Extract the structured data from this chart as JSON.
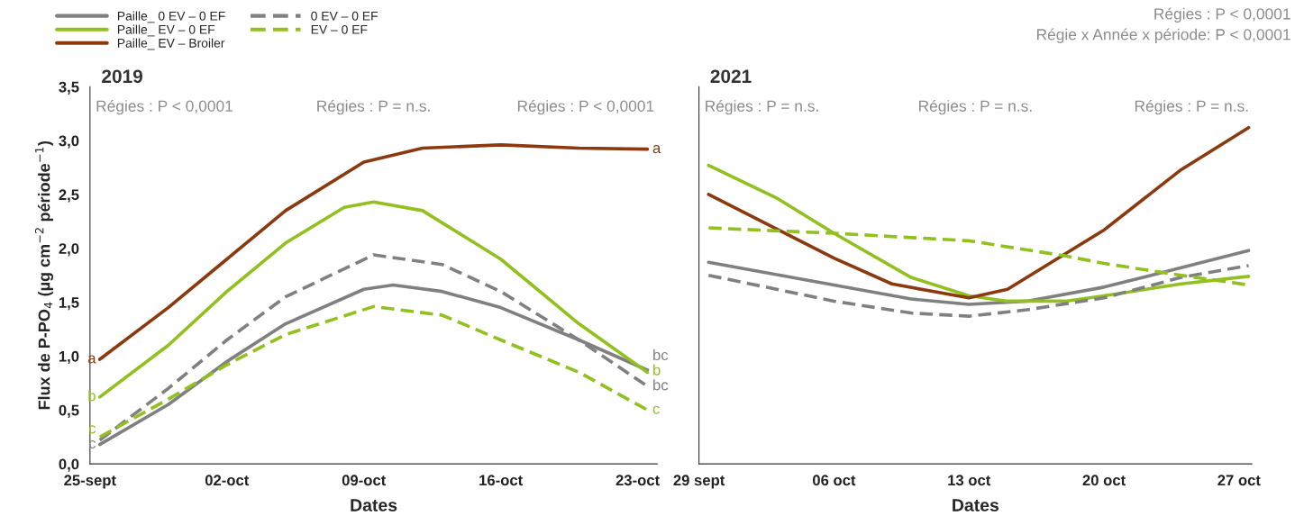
{
  "chart_data": [
    {
      "type": "line",
      "title": "2019",
      "xlabel": "Dates",
      "ylabel": "Flux de P-PO$_{4}$ (µg cm$^{−2}$ période$^{−1}$)",
      "xlim": [
        "2019-09-25",
        "2019-10-24"
      ],
      "xticks": [
        {
          "value": "2019-09-25",
          "label": "25-sept"
        },
        {
          "value": "2019-10-02",
          "label": "02-oct"
        },
        {
          "value": "2019-10-09",
          "label": "09-oct"
        },
        {
          "value": "2019-10-16",
          "label": "16-oct"
        },
        {
          "value": "2019-10-23",
          "label": "23-oct"
        }
      ],
      "ylim": [
        0,
        3.5
      ],
      "yticks": [
        {
          "value": 0,
          "label": "0,0"
        },
        {
          "value": 0.5,
          "label": "0,5"
        },
        {
          "value": 1,
          "label": "1,0"
        },
        {
          "value": 1.5,
          "label": "1,5"
        },
        {
          "value": 2,
          "label": "2,0"
        },
        {
          "value": 2.5,
          "label": "2,5"
        },
        {
          "value": 3,
          "label": "3,0"
        },
        {
          "value": 3.5,
          "label": "3,5"
        }
      ],
      "grid": false,
      "legend": "top left",
      "series": [
        {
          "name": "Paille_ 0 EV – 0 EF",
          "color": "#808080",
          "line_style": "solid",
          "x": [
            "2019-09-25T12:00",
            "2019-09-29",
            "2019-10-02",
            "2019-10-05",
            "2019-10-09",
            "2019-10-10T12:00",
            "2019-10-13",
            "2019-10-16",
            "2019-10-20",
            "2019-10-23T12:00"
          ],
          "values": [
            0.18,
            0.55,
            0.95,
            1.3,
            1.62,
            1.66,
            1.6,
            1.45,
            1.15,
            0.87
          ]
        },
        {
          "name": "Paille_ EV – 0 EF",
          "color": "#92c01f",
          "line_style": "solid",
          "x": [
            "2019-09-25T12:00",
            "2019-09-29",
            "2019-10-02",
            "2019-10-05",
            "2019-10-08",
            "2019-10-09T12:00",
            "2019-10-12",
            "2019-10-16",
            "2019-10-20",
            "2019-10-23T12:00"
          ],
          "values": [
            0.62,
            1.1,
            1.6,
            2.05,
            2.38,
            2.43,
            2.35,
            1.9,
            1.3,
            0.85
          ]
        },
        {
          "name": "Paille_ EV – Broiler",
          "color": "#8b3a0f",
          "line_style": "solid",
          "x": [
            "2019-09-25T12:00",
            "2019-09-29",
            "2019-10-02",
            "2019-10-05",
            "2019-10-09",
            "2019-10-12",
            "2019-10-16",
            "2019-10-20",
            "2019-10-23T12:00"
          ],
          "values": [
            0.97,
            1.45,
            1.9,
            2.35,
            2.8,
            2.93,
            2.96,
            2.93,
            2.92
          ]
        },
        {
          "name": "0 EV – 0 EF",
          "color": "#808080",
          "line_style": "dashed",
          "x": [
            "2019-09-25T12:00",
            "2019-09-29",
            "2019-10-02",
            "2019-10-05",
            "2019-10-09T12:00",
            "2019-10-13",
            "2019-10-16",
            "2019-10-20",
            "2019-10-23T12:00"
          ],
          "values": [
            0.22,
            0.7,
            1.15,
            1.55,
            1.94,
            1.85,
            1.6,
            1.15,
            0.72
          ]
        },
        {
          "name": "EV – 0 EF",
          "color": "#92c01f",
          "line_style": "dashed",
          "x": [
            "2019-09-25T12:00",
            "2019-09-29",
            "2019-10-02",
            "2019-10-05",
            "2019-10-09T12:00",
            "2019-10-13",
            "2019-10-16",
            "2019-10-20",
            "2019-10-23T12:00"
          ],
          "values": [
            0.25,
            0.6,
            0.92,
            1.2,
            1.46,
            1.38,
            1.15,
            0.85,
            0.5
          ]
        }
      ],
      "annotations": [
        "Régies : P < 0,0001",
        "Régies : P = n.s.",
        "Régies : P < 0,0001",
        {
          "text": "a",
          "x": "2019-09-25T12:00",
          "y": 0.97
        },
        {
          "text": "b",
          "x": "2019-09-25T12:00",
          "y": 0.62
        },
        {
          "text": "c",
          "x": "2019-09-25T12:00",
          "y": 0.18
        },
        {
          "text": "c",
          "x": "2019-09-25T12:00",
          "y": 0.25
        },
        {
          "text": "a",
          "x": "2019-10-23T12:00",
          "y": 2.92
        },
        {
          "text": "b",
          "x": "2019-10-23T12:00",
          "y": 0.85
        },
        {
          "text": "bc",
          "x": "2019-10-23T12:00",
          "y": 0.87
        },
        {
          "text": "bc",
          "x": "2019-10-23T12:00",
          "y": 0.72
        },
        {
          "text": "c",
          "x": "2019-10-23T12:00",
          "y": 0.5
        }
      ]
    },
    {
      "type": "line",
      "title": "2021",
      "xlabel": "Dates",
      "xlim": [
        "2021-09-29",
        "2021-10-27T16:00"
      ],
      "xticks": [
        {
          "value": "2021-09-29",
          "label": "29 sept"
        },
        {
          "value": "2021-10-06",
          "label": "06 oct"
        },
        {
          "value": "2021-10-13",
          "label": "13 oct"
        },
        {
          "value": "2021-10-20",
          "label": "20 oct"
        },
        {
          "value": "2021-10-27",
          "label": "27 oct"
        }
      ],
      "ylim": [
        0,
        3.5
      ],
      "yticks": [
        {
          "value": 0,
          "label": null
        },
        {
          "value": 0.5,
          "label": null
        },
        {
          "value": 1,
          "label": null
        },
        {
          "value": 1.5,
          "label": null
        },
        {
          "value": 2,
          "label": null
        },
        {
          "value": 2.5,
          "label": null
        },
        {
          "value": 3,
          "label": null
        },
        {
          "value": 3.5,
          "label": null
        }
      ],
      "tick_labels": "x",
      "grid": false,
      "series": [
        {
          "color": "#808080",
          "line_style": "solid",
          "x": [
            "2021-09-29T12:00",
            "2021-10-06",
            "2021-10-10",
            "2021-10-13",
            "2021-10-16",
            "2021-10-20",
            "2021-10-24",
            "2021-10-27T12:00"
          ],
          "values": [
            1.87,
            1.66,
            1.53,
            1.48,
            1.51,
            1.64,
            1.82,
            1.98
          ]
        },
        {
          "color": "#92c01f",
          "line_style": "solid",
          "x": [
            "2021-09-29T12:00",
            "2021-10-03",
            "2021-10-06",
            "2021-10-10",
            "2021-10-13",
            "2021-10-15",
            "2021-10-18",
            "2021-10-20",
            "2021-10-24",
            "2021-10-27T12:00"
          ],
          "values": [
            2.77,
            2.47,
            2.14,
            1.73,
            1.56,
            1.51,
            1.51,
            1.56,
            1.67,
            1.74
          ]
        },
        {
          "color": "#8b3a0f",
          "line_style": "solid",
          "x": [
            "2021-09-29T12:00",
            "2021-10-06",
            "2021-10-09",
            "2021-10-13",
            "2021-10-15",
            "2021-10-18",
            "2021-10-20",
            "2021-10-24",
            "2021-10-27T12:00"
          ],
          "values": [
            2.5,
            1.91,
            1.67,
            1.54,
            1.62,
            1.95,
            2.17,
            2.73,
            3.12
          ]
        },
        {
          "color": "#808080",
          "line_style": "dashed",
          "x": [
            "2021-09-29T12:00",
            "2021-10-06",
            "2021-10-10",
            "2021-10-13",
            "2021-10-16",
            "2021-10-20",
            "2021-10-24",
            "2021-10-27T12:00"
          ],
          "values": [
            1.75,
            1.51,
            1.4,
            1.37,
            1.43,
            1.54,
            1.73,
            1.84
          ]
        },
        {
          "color": "#92c01f",
          "line_style": "dashed",
          "x": [
            "2021-09-29T12:00",
            "2021-10-06",
            "2021-10-13",
            "2021-10-18",
            "2021-10-20",
            "2021-10-24",
            "2021-10-27T12:00"
          ],
          "values": [
            2.19,
            2.14,
            2.07,
            1.93,
            1.86,
            1.75,
            1.66
          ]
        }
      ],
      "annotations": [
        "Régies : P = n.s.",
        "Régies : P = n.s.",
        "Régies : P = n.s.",
        "Régies : P < 0,0001",
        "Régie x Année x période: P < 0,0001"
      ]
    }
  ]
}
